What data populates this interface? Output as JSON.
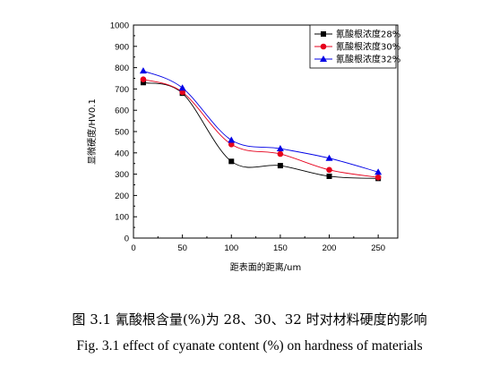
{
  "chart_data": {
    "type": "line",
    "xlabel": "距表面的距离/um",
    "ylabel": "显微硬度/HV0.1",
    "x": [
      10,
      50,
      100,
      150,
      200,
      250
    ],
    "x_ticks": [
      0,
      50,
      100,
      150,
      200,
      250
    ],
    "y_ticks": [
      0,
      100,
      200,
      300,
      400,
      500,
      600,
      700,
      800,
      900,
      1000
    ],
    "xlim": [
      0,
      270
    ],
    "ylim": [
      0,
      1000
    ],
    "grid": false,
    "legend_position": "top-right",
    "series": [
      {
        "name": "氰酸根浓度28%",
        "values": [
          730,
          680,
          360,
          340,
          290,
          280
        ],
        "color": "#000000",
        "marker": "square"
      },
      {
        "name": "氰酸根浓度30%",
        "values": [
          745,
          685,
          440,
          395,
          320,
          285
        ],
        "color": "#e6001c",
        "marker": "circle"
      },
      {
        "name": "氰酸根浓度32%",
        "values": [
          785,
          705,
          460,
          420,
          375,
          310
        ],
        "color": "#0000e6",
        "marker": "triangle"
      }
    ]
  },
  "caption": {
    "cn": "图 3.1  氰酸根含量(%)为 28、30、32 时对材料硬度的影响",
    "en": "Fig. 3.1 effect of cyanate content (%) on hardness of materials"
  }
}
